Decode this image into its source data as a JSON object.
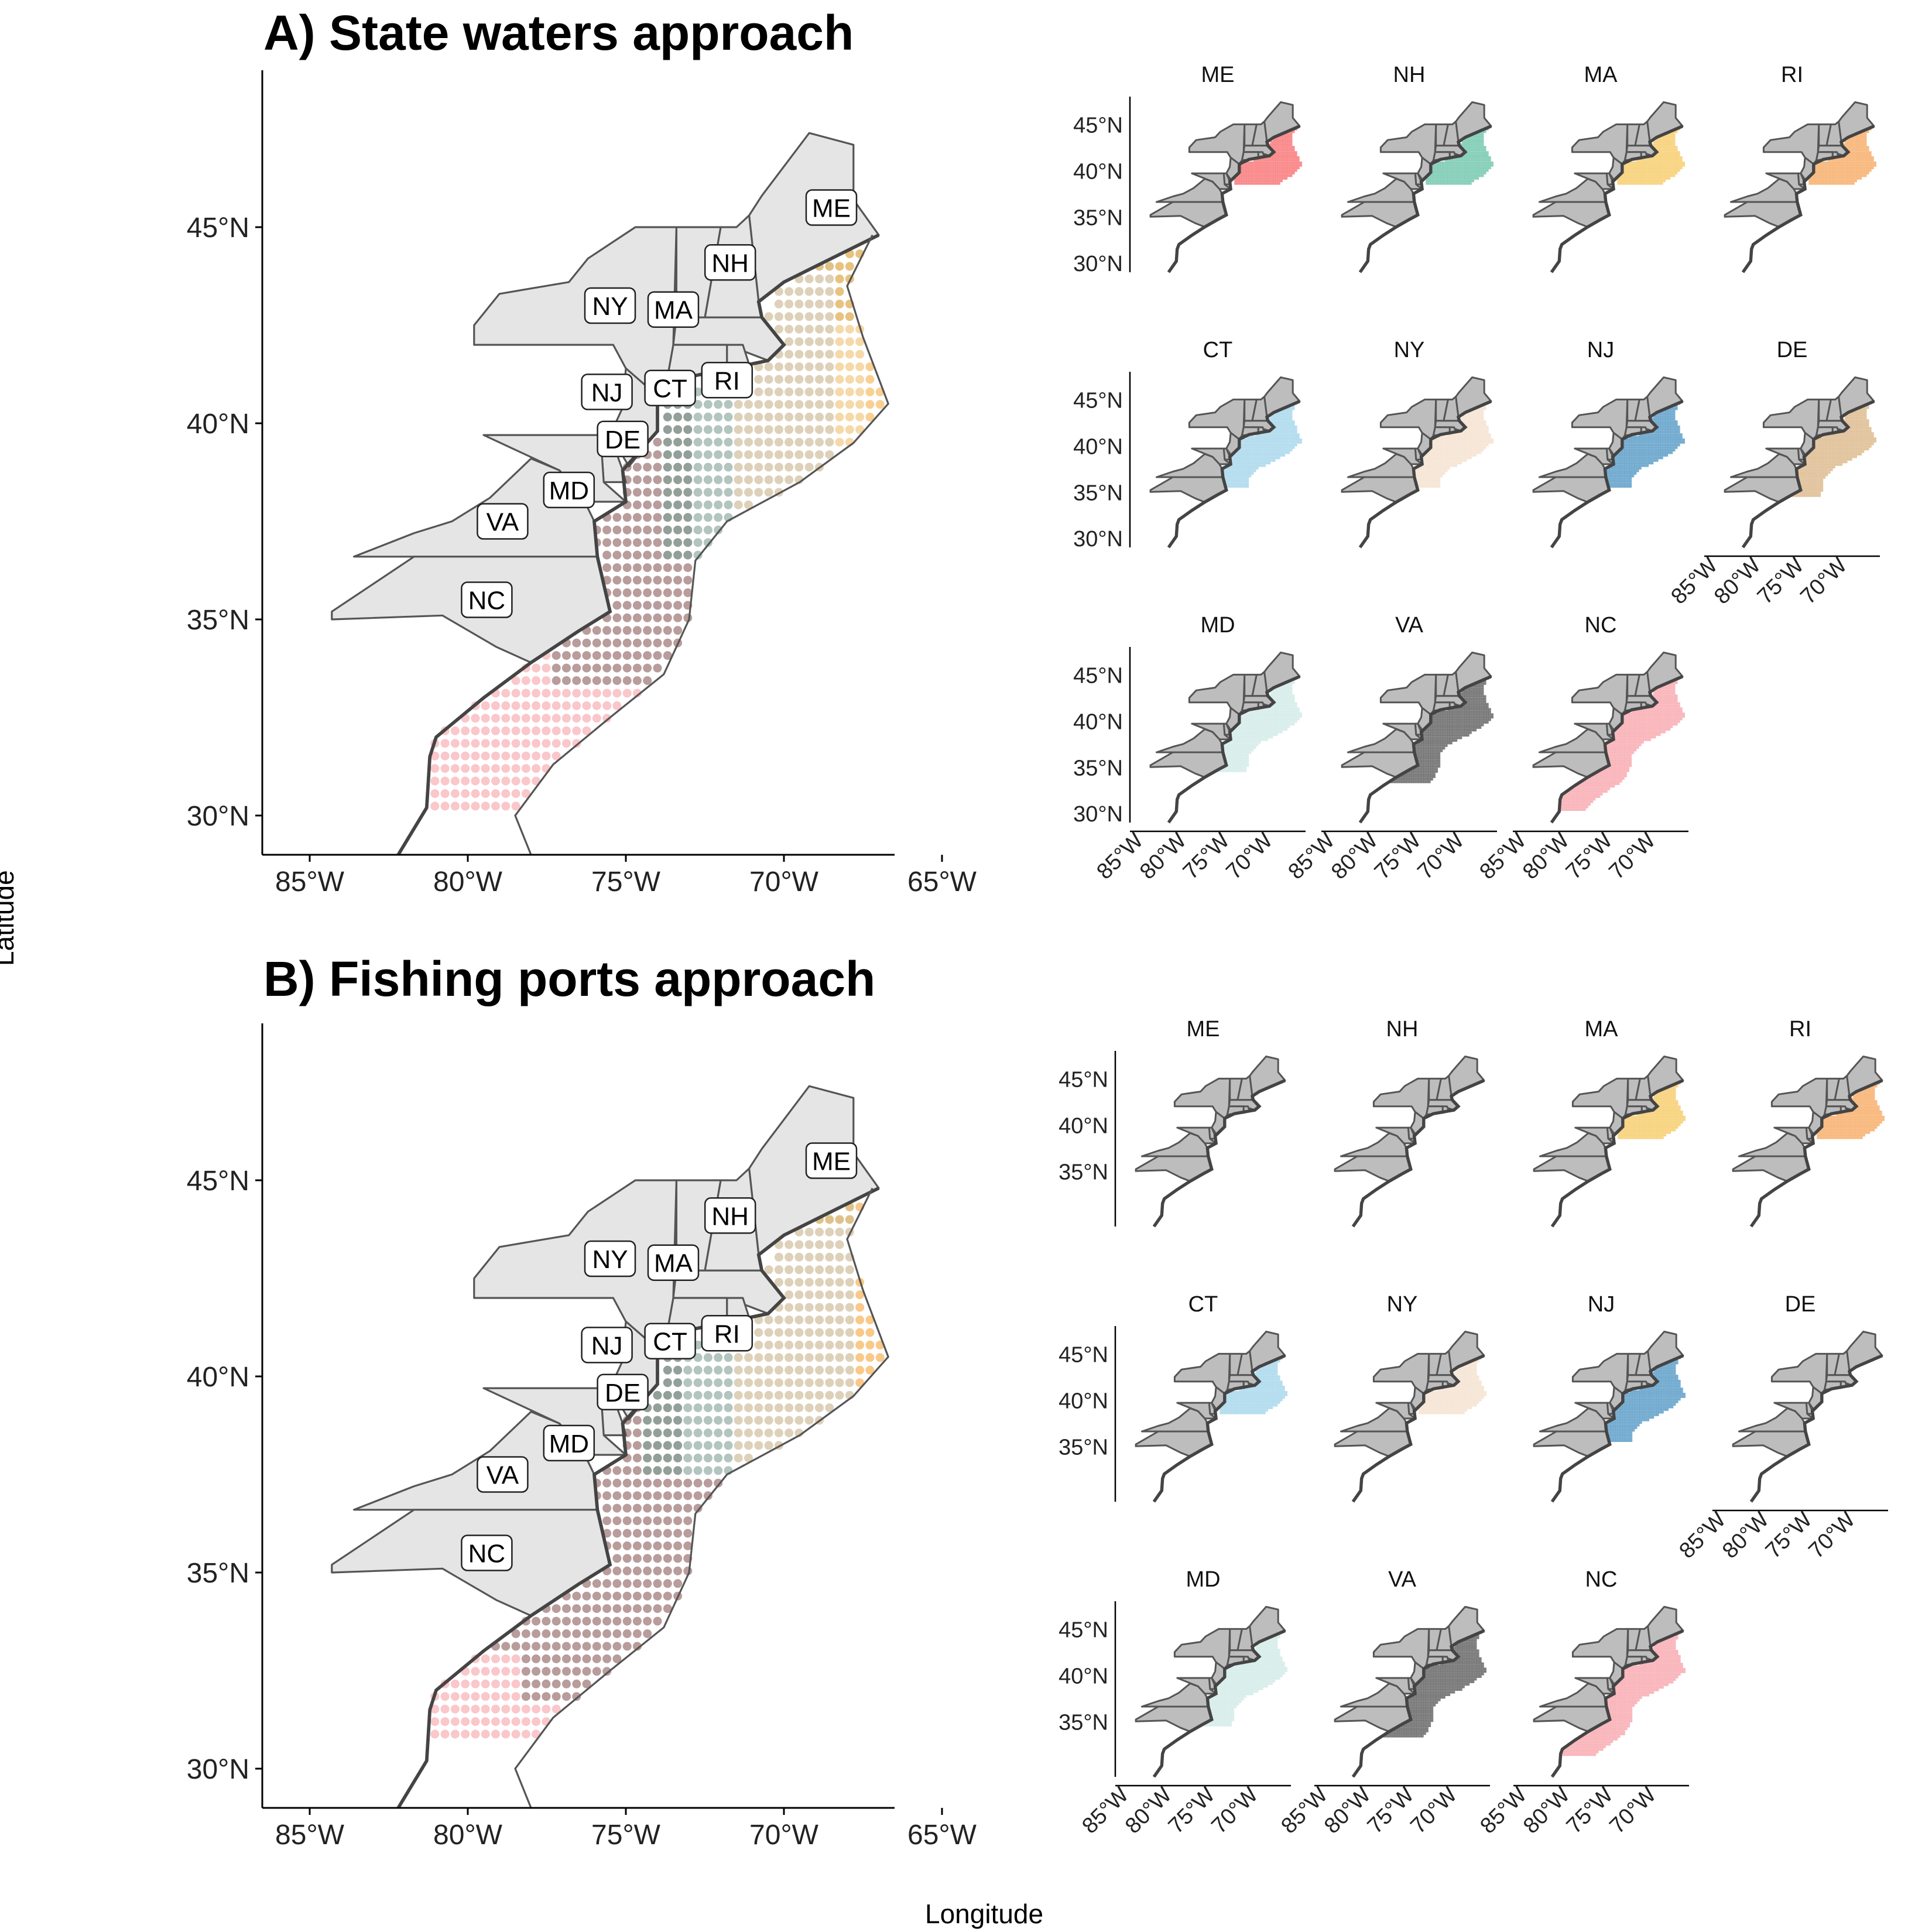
{
  "figure": {
    "x_axis_title": "Longitude",
    "y_axis_title": "Latitude"
  },
  "panels": [
    {
      "id": "A",
      "title": "A) State waters approach",
      "lat_ticks": [
        "30°N",
        "35°N",
        "40°N",
        "45°N"
      ],
      "lon_ticks": [
        "85°W",
        "80°W",
        "75°W",
        "70°W",
        "65°W"
      ],
      "lat_range": [
        29,
        49
      ],
      "lon_range": [
        -86.5,
        -66.5
      ],
      "state_labels": [
        {
          "code": "ME",
          "lon": -68.5,
          "lat": 45.5
        },
        {
          "code": "NH",
          "lon": -71.7,
          "lat": 44.1
        },
        {
          "code": "NY",
          "lon": -75.5,
          "lat": 43.0
        },
        {
          "code": "MA",
          "lon": -73.5,
          "lat": 42.9
        },
        {
          "code": "NJ",
          "lon": -75.6,
          "lat": 40.8
        },
        {
          "code": "CT",
          "lon": -73.6,
          "lat": 40.9
        },
        {
          "code": "RI",
          "lon": -71.8,
          "lat": 41.1
        },
        {
          "code": "DE",
          "lon": -75.1,
          "lat": 39.6
        },
        {
          "code": "MD",
          "lon": -76.8,
          "lat": 38.3
        },
        {
          "code": "VA",
          "lon": -78.9,
          "lat": 37.5
        },
        {
          "code": "NC",
          "lon": -79.4,
          "lat": 35.5
        }
      ],
      "facets": [
        {
          "state": "ME",
          "color": "#f8696b",
          "region": "north"
        },
        {
          "state": "NH",
          "color": "#66c2a5",
          "region": "north"
        },
        {
          "state": "MA",
          "color": "#f6c85f",
          "region": "north"
        },
        {
          "state": "RI",
          "color": "#f5a65b",
          "region": "north"
        },
        {
          "state": "CT",
          "color": "#9fd3ea",
          "region": "mid"
        },
        {
          "state": "NY",
          "color": "#f3dfcb",
          "region": "mid"
        },
        {
          "state": "NJ",
          "color": "#4b93c2",
          "region": "mid"
        },
        {
          "state": "DE",
          "color": "#d9b383",
          "region": "midsouth"
        },
        {
          "state": "MD",
          "color": "#cde9e6",
          "region": "midsouth"
        },
        {
          "state": "VA",
          "color": "#555555",
          "region": "south"
        },
        {
          "state": "NC",
          "color": "#f7a1a8",
          "region": "fullsouth"
        }
      ],
      "facet_lat_ticks": [
        "30°N",
        "35°N",
        "40°N",
        "45°N"
      ],
      "facet_lon_ticks": [
        "85°W",
        "80°W",
        "75°W",
        "70°W"
      ]
    },
    {
      "id": "B",
      "title": "B) Fishing ports approach",
      "lat_ticks": [
        "30°N",
        "35°N",
        "40°N",
        "45°N"
      ],
      "lon_ticks": [
        "85°W",
        "80°W",
        "75°W",
        "70°W",
        "65°W"
      ],
      "lat_range": [
        29,
        49
      ],
      "lon_range": [
        -86.5,
        -66.5
      ],
      "state_labels": [
        {
          "code": "ME",
          "lon": -68.5,
          "lat": 45.5
        },
        {
          "code": "NH",
          "lon": -71.7,
          "lat": 44.1
        },
        {
          "code": "NY",
          "lon": -75.5,
          "lat": 43.0
        },
        {
          "code": "MA",
          "lon": -73.5,
          "lat": 42.9
        },
        {
          "code": "NJ",
          "lon": -75.6,
          "lat": 40.8
        },
        {
          "code": "CT",
          "lon": -73.6,
          "lat": 40.9
        },
        {
          "code": "RI",
          "lon": -71.8,
          "lat": 41.1
        },
        {
          "code": "DE",
          "lon": -75.1,
          "lat": 39.6
        },
        {
          "code": "MD",
          "lon": -76.8,
          "lat": 38.3
        },
        {
          "code": "VA",
          "lon": -78.9,
          "lat": 37.5
        },
        {
          "code": "NC",
          "lon": -79.4,
          "lat": 35.5
        }
      ],
      "facets": [
        {
          "state": "ME",
          "color": "#f8696b",
          "region": "none"
        },
        {
          "state": "NH",
          "color": "#66c2a5",
          "region": "none"
        },
        {
          "state": "MA",
          "color": "#f6c85f",
          "region": "north"
        },
        {
          "state": "RI",
          "color": "#f5a65b",
          "region": "north"
        },
        {
          "state": "CT",
          "color": "#9fd3ea",
          "region": "north"
        },
        {
          "state": "NY",
          "color": "#f3dfcb",
          "region": "north"
        },
        {
          "state": "NJ",
          "color": "#4b93c2",
          "region": "mid"
        },
        {
          "state": "DE",
          "color": "#d9b383",
          "region": "none"
        },
        {
          "state": "MD",
          "color": "#cde9e6",
          "region": "midsouth"
        },
        {
          "state": "VA",
          "color": "#555555",
          "region": "south"
        },
        {
          "state": "NC",
          "color": "#f7a1a8",
          "region": "southshort"
        }
      ],
      "facet_lat_ticks": [
        "35°N",
        "40°N",
        "45°N"
      ],
      "facet_lon_ticks": [
        "85°W",
        "80°W",
        "75°W",
        "70°W"
      ]
    }
  ]
}
